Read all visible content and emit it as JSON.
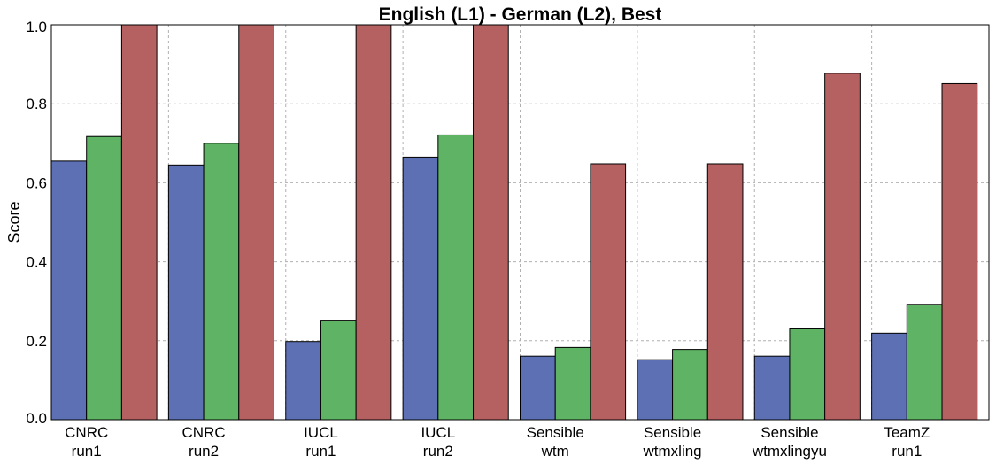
{
  "chart_data": {
    "type": "bar",
    "title": "English (L1) - German (L2), Best",
    "xlabel": "",
    "ylabel": "Score",
    "ylim": [
      0,
      1.0
    ],
    "yticks": [
      "0.0",
      "0.2",
      "0.4",
      "0.6",
      "0.8",
      "1.0"
    ],
    "grid": true,
    "categories": [
      [
        "CNRC",
        "run1"
      ],
      [
        "CNRC",
        "run2"
      ],
      [
        "IUCL",
        "run1"
      ],
      [
        "IUCL",
        "run2"
      ],
      [
        "Sensible",
        "wtm"
      ],
      [
        "Sensible",
        "wtmxling"
      ],
      [
        "Sensible",
        "wtmxlingyu"
      ],
      [
        "TeamZ",
        "run1"
      ]
    ],
    "series": [
      {
        "color": "#5d70b4",
        "values": [
          0.655,
          0.645,
          0.198,
          0.665,
          0.161,
          0.152,
          0.161,
          0.219
        ]
      },
      {
        "color": "#5fb364",
        "values": [
          0.717,
          0.7,
          0.252,
          0.721,
          0.183,
          0.178,
          0.232,
          0.292
        ]
      },
      {
        "color": "#b56061",
        "values": [
          1.0,
          1.0,
          1.0,
          1.0,
          0.648,
          0.648,
          0.877,
          0.851
        ]
      }
    ]
  }
}
